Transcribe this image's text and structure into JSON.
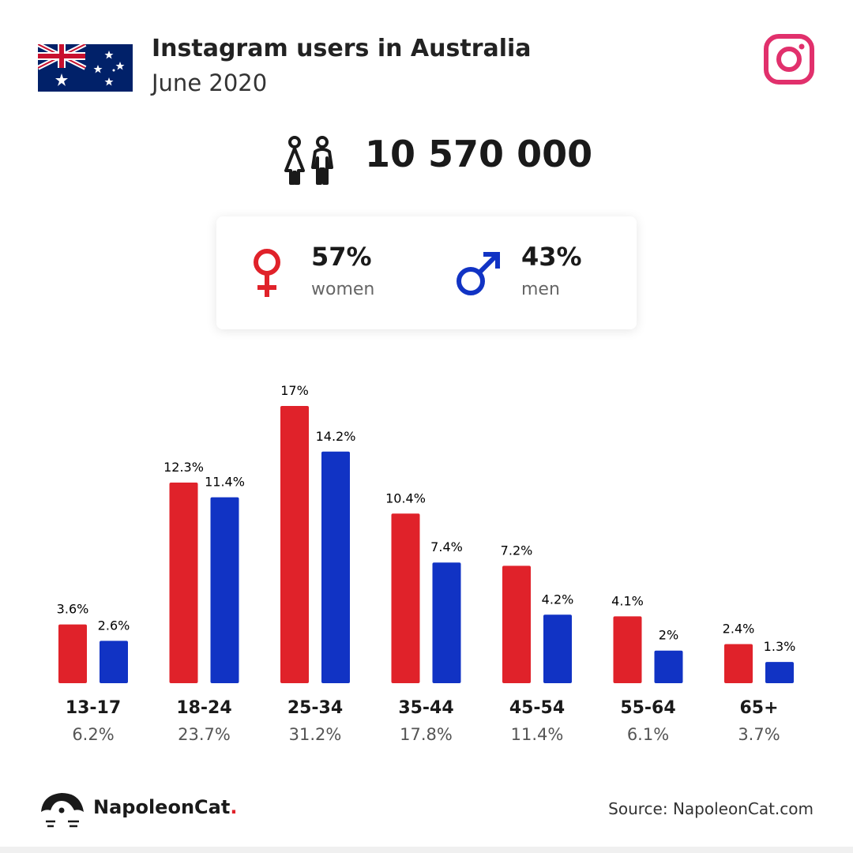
{
  "header": {
    "title": "Instagram users in Australia",
    "subtitle": "June 2020",
    "flag_icon": "australia-flag-icon",
    "platform_icon": "instagram-icon"
  },
  "total": {
    "value": "10 570 000",
    "icon": "users-couple-icon"
  },
  "gender": {
    "women": {
      "pct": "57%",
      "label": "women",
      "icon": "female-symbol-icon",
      "color": "#e0222a"
    },
    "men": {
      "pct": "43%",
      "label": "men",
      "icon": "male-symbol-icon",
      "color": "#1133c4"
    }
  },
  "chart_data": {
    "type": "bar",
    "categories": [
      "13-17",
      "18-24",
      "25-34",
      "35-44",
      "45-54",
      "55-64",
      "65+"
    ],
    "category_totals": [
      "6.2%",
      "23.7%",
      "31.2%",
      "17.8%",
      "11.4%",
      "6.1%",
      "3.7%"
    ],
    "series": [
      {
        "color": "#e0222a",
        "values": [
          3.6,
          12.3,
          17,
          10.4,
          7.2,
          4.1,
          2.4
        ],
        "labels": [
          "3.6%",
          "12.3%",
          "17%",
          "10.4%",
          "7.2%",
          "4.1%",
          "2.4%"
        ]
      },
      {
        "color": "#1133c4",
        "values": [
          2.6,
          11.4,
          14.2,
          7.4,
          4.2,
          2,
          1.3
        ],
        "labels": [
          "2.6%",
          "11.4%",
          "14.2%",
          "7.4%",
          "4.2%",
          "2%",
          "1.3%"
        ]
      }
    ],
    "ylim": [
      0,
      17
    ],
    "grid": false,
    "legend": "none"
  },
  "footer": {
    "brand": "NapoleonCat",
    "brand_dot": ".",
    "brand_icon": "napoleoncat-logo-icon",
    "source": "Source: NapoleonCat.com"
  }
}
